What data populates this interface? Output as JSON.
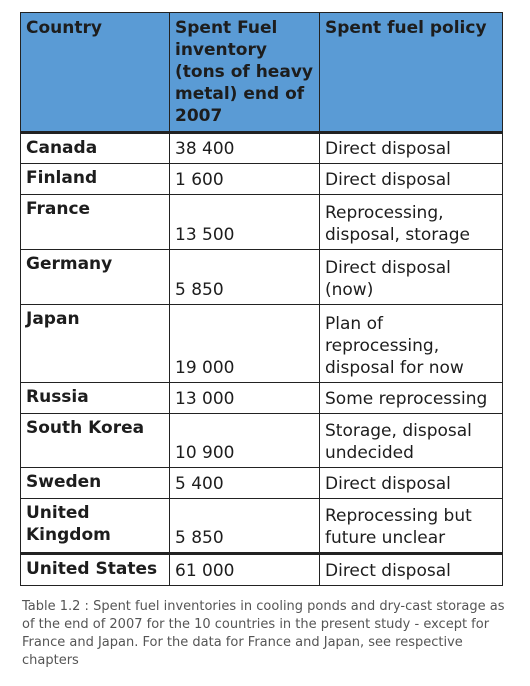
{
  "table": {
    "headers": [
      "Country",
      "Spent Fuel inventory (tons of heavy metal) end of 2007",
      "Spent fuel policy"
    ],
    "rows": [
      {
        "country": "Canada",
        "inventory": "38 400",
        "policy": "Direct disposal"
      },
      {
        "country": "Finland",
        "inventory": "1 600",
        "policy": "Direct disposal"
      },
      {
        "country": "France",
        "inventory": "13 500",
        "policy": "Reprocessing, disposal, storage"
      },
      {
        "country": "Germany",
        "inventory": "5 850",
        "policy": "Direct disposal (now)"
      },
      {
        "country": "Japan",
        "inventory": "19 000",
        "policy": "Plan of reprocessing, disposal for now"
      },
      {
        "country": "Russia",
        "inventory": "13 000",
        "policy": "Some reprocessing"
      },
      {
        "country": "South Korea",
        "inventory": "10 900",
        "policy": "Storage, disposal undecided"
      },
      {
        "country": "Sweden",
        "inventory": "5 400",
        "policy": "Direct disposal"
      },
      {
        "country": "United Kingdom",
        "inventory": "5 850",
        "policy": "Reprocessing but future unclear"
      },
      {
        "country": "United States",
        "inventory": "61 000",
        "policy": "Direct disposal"
      }
    ]
  },
  "caption": "Table 1.2 : Spent fuel inventories in cooling ponds and dry-cast storage as of the end of 2007 for the 10 countries in the present study - except for France and Japan. For the data for France and Japan, see respective chapters",
  "colors": {
    "header_bg": "#5a9bd5",
    "border": "#222222",
    "caption_text": "#555555"
  }
}
